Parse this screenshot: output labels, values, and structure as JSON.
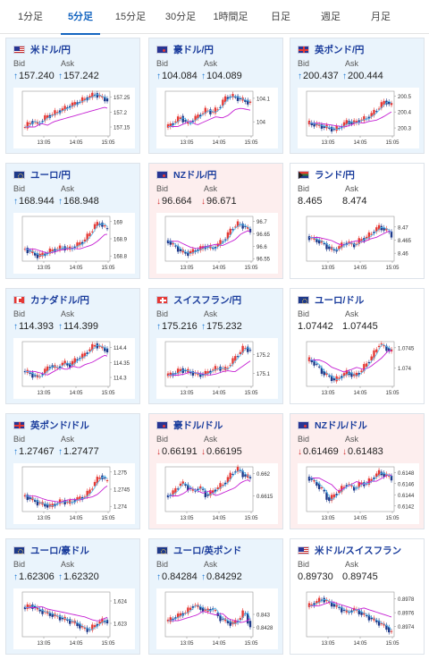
{
  "tabs": [
    "1分足",
    "5分足",
    "15分足",
    "30分足",
    "1時間足",
    "日足",
    "週足",
    "月足"
  ],
  "active_tab": 1,
  "labels": {
    "bid": "Bid",
    "ask": "Ask"
  },
  "time_labels": [
    "13:05",
    "14:05",
    "15:05"
  ],
  "colors": {
    "up_candle": "#e53935",
    "down_candle": "#1e3a8a",
    "ma_line": "#c51fd3",
    "ma_line_2": "#4fc3f7",
    "tab_active": "#1565c0",
    "card_up_bg": "#eaf4fc",
    "card_down_bg": "#fdeeee"
  },
  "cards": [
    {
      "pair": "米ドル/円",
      "flag": "us",
      "dir": "up",
      "bid": "157.240",
      "ask": "157.242",
      "ticks": [
        "157.25",
        "157.2",
        "157.15"
      ],
      "ylim": [
        157.12,
        157.27
      ],
      "trend": [
        157.15,
        157.17,
        157.16,
        157.18,
        157.19,
        157.2,
        157.21,
        157.22,
        157.23,
        157.24,
        157.25,
        157.26,
        157.25,
        157.24
      ]
    },
    {
      "pair": "豪ドル/円",
      "flag": "au",
      "dir": "up",
      "bid": "104.084",
      "ask": "104.089",
      "ticks": [
        "104.1",
        "104"
      ],
      "ylim": [
        103.94,
        104.13
      ],
      "trend": [
        103.98,
        104.0,
        104.02,
        103.99,
        104.01,
        104.03,
        104.05,
        104.04,
        104.06,
        104.1,
        104.11,
        104.1,
        104.09,
        104.08
      ]
    },
    {
      "pair": "英ポンド/円",
      "flag": "gb",
      "dir": "up",
      "bid": "200.437",
      "ask": "200.444",
      "ticks": [
        "200.5",
        "200.4",
        "200.3"
      ],
      "ylim": [
        200.25,
        200.53
      ],
      "trend": [
        200.33,
        200.32,
        200.31,
        200.3,
        200.29,
        200.31,
        200.34,
        200.33,
        200.35,
        200.36,
        200.39,
        200.43,
        200.47,
        200.44
      ]
    },
    {
      "pair": "ユーロ/円",
      "flag": "eu",
      "dir": "up",
      "bid": "168.944",
      "ask": "168.948",
      "ticks": [
        "169",
        "168.9",
        "168.8"
      ],
      "ylim": [
        168.77,
        169.03
      ],
      "trend": [
        168.84,
        168.82,
        168.8,
        168.81,
        168.83,
        168.84,
        168.85,
        168.84,
        168.86,
        168.88,
        168.92,
        168.98,
        168.99,
        168.95
      ]
    },
    {
      "pair": "NZドル/円",
      "flag": "nz",
      "dir": "down",
      "bid": "96.664",
      "ask": "96.671",
      "ticks": [
        "96.7",
        "96.65",
        "96.6",
        "96.55"
      ],
      "ylim": [
        96.54,
        96.72
      ],
      "trend": [
        96.62,
        96.6,
        96.58,
        96.57,
        96.58,
        96.59,
        96.6,
        96.59,
        96.61,
        96.63,
        96.67,
        96.69,
        96.68,
        96.66
      ]
    },
    {
      "pair": "ランド/円",
      "flag": "za",
      "dir": "flat",
      "bid": "8.465",
      "ask": "8.474",
      "ticks": [
        "8.47",
        "8.465",
        "8.46"
      ],
      "ylim": [
        8.457,
        8.474
      ],
      "trend": [
        8.466,
        8.465,
        8.464,
        8.462,
        8.461,
        8.463,
        8.464,
        8.463,
        8.465,
        8.466,
        8.468,
        8.47,
        8.469,
        8.467
      ]
    },
    {
      "pair": "カナダドル/円",
      "flag": "ca",
      "dir": "up",
      "bid": "114.393",
      "ask": "114.399",
      "ticks": [
        "114.4",
        "114.35",
        "114.3"
      ],
      "ylim": [
        114.27,
        114.42
      ],
      "trend": [
        114.32,
        114.31,
        114.3,
        114.32,
        114.34,
        114.33,
        114.35,
        114.34,
        114.36,
        114.37,
        114.39,
        114.41,
        114.4,
        114.39
      ]
    },
    {
      "pair": "スイスフラン/円",
      "flag": "ch",
      "dir": "up",
      "bid": "175.216",
      "ask": "175.232",
      "ticks": [
        "175.2",
        "175.1"
      ],
      "ylim": [
        175.03,
        175.27
      ],
      "trend": [
        175.09,
        175.1,
        175.12,
        175.11,
        175.1,
        175.09,
        175.1,
        175.12,
        175.13,
        175.12,
        175.16,
        175.2,
        175.24,
        175.22
      ]
    },
    {
      "pair": "ユーロ/ドル",
      "flag": "eu",
      "dir": "flat",
      "bid": "1.07442",
      "ask": "1.07445",
      "ticks": [
        "1.0745",
        "1.074"
      ],
      "ylim": [
        1.07355,
        1.07465
      ],
      "trend": [
        1.0742,
        1.0741,
        1.0739,
        1.0738,
        1.0737,
        1.0738,
        1.0739,
        1.0738,
        1.0739,
        1.0741,
        1.0743,
        1.0746,
        1.0745,
        1.0744
      ]
    },
    {
      "pair": "英ポンド/ドル",
      "flag": "gb",
      "dir": "up",
      "bid": "1.27467",
      "ask": "1.27477",
      "ticks": [
        "1.275",
        "1.2745",
        "1.274"
      ],
      "ylim": [
        1.27385,
        1.27515
      ],
      "trend": [
        1.2743,
        1.2742,
        1.2741,
        1.27405,
        1.274,
        1.2741,
        1.27415,
        1.2741,
        1.2742,
        1.27425,
        1.2744,
        1.2747,
        1.2749,
        1.2747
      ]
    },
    {
      "pair": "豪ドル/ドル",
      "flag": "au",
      "dir": "down",
      "bid": "0.66191",
      "ask": "0.66195",
      "ticks": [
        "0.662",
        "0.6615"
      ],
      "ylim": [
        0.66115,
        0.66215
      ],
      "trend": [
        0.6615,
        0.6616,
        0.6618,
        0.6617,
        0.6616,
        0.6617,
        0.6615,
        0.6616,
        0.6617,
        0.6618,
        0.662,
        0.6621,
        0.66195,
        0.6619
      ]
    },
    {
      "pair": "NZドル/ドル",
      "flag": "nz",
      "dir": "down",
      "bid": "0.61469",
      "ask": "0.61483",
      "ticks": [
        "0.6148",
        "0.6146",
        "0.6144",
        "0.6142"
      ],
      "ylim": [
        0.6141,
        0.6149
      ],
      "trend": [
        0.6147,
        0.6146,
        0.6145,
        0.6143,
        0.6144,
        0.6145,
        0.6146,
        0.6145,
        0.6146,
        0.6146,
        0.6147,
        0.6148,
        0.61475,
        0.6147
      ]
    },
    {
      "pair": "ユーロ/豪ドル",
      "flag": "eu",
      "dir": "up",
      "bid": "1.62306",
      "ask": "1.62320",
      "ticks": [
        "1.624",
        "1.623"
      ],
      "ylim": [
        1.6224,
        1.6244
      ],
      "trend": [
        1.6237,
        1.6238,
        1.6236,
        1.6235,
        1.6234,
        1.6233,
        1.6232,
        1.6231,
        1.623,
        1.6228,
        1.6227,
        1.6229,
        1.6231,
        1.6231
      ]
    },
    {
      "pair": "ユーロ/英ポンド",
      "flag": "eu",
      "dir": "up",
      "bid": "0.84284",
      "ask": "0.84292",
      "ticks": [
        "0.843",
        "0.8428"
      ],
      "ylim": [
        0.84265,
        0.84335
      ],
      "trend": [
        0.8429,
        0.84295,
        0.843,
        0.84305,
        0.84315,
        0.8431,
        0.84305,
        0.8431,
        0.84295,
        0.8429,
        0.84285,
        0.8429,
        0.84305,
        0.8428
      ]
    },
    {
      "pair": "米ドル/スイスフラン",
      "flag": "us",
      "dir": "flat",
      "bid": "0.89730",
      "ask": "0.89745",
      "ticks": [
        "0.8978",
        "0.8976",
        "0.8974"
      ],
      "ylim": [
        0.89725,
        0.8979
      ],
      "trend": [
        0.8977,
        0.89775,
        0.8978,
        0.89775,
        0.8977,
        0.89765,
        0.8976,
        0.89765,
        0.8976,
        0.89755,
        0.8975,
        0.89745,
        0.8974,
        0.8973
      ]
    }
  ]
}
